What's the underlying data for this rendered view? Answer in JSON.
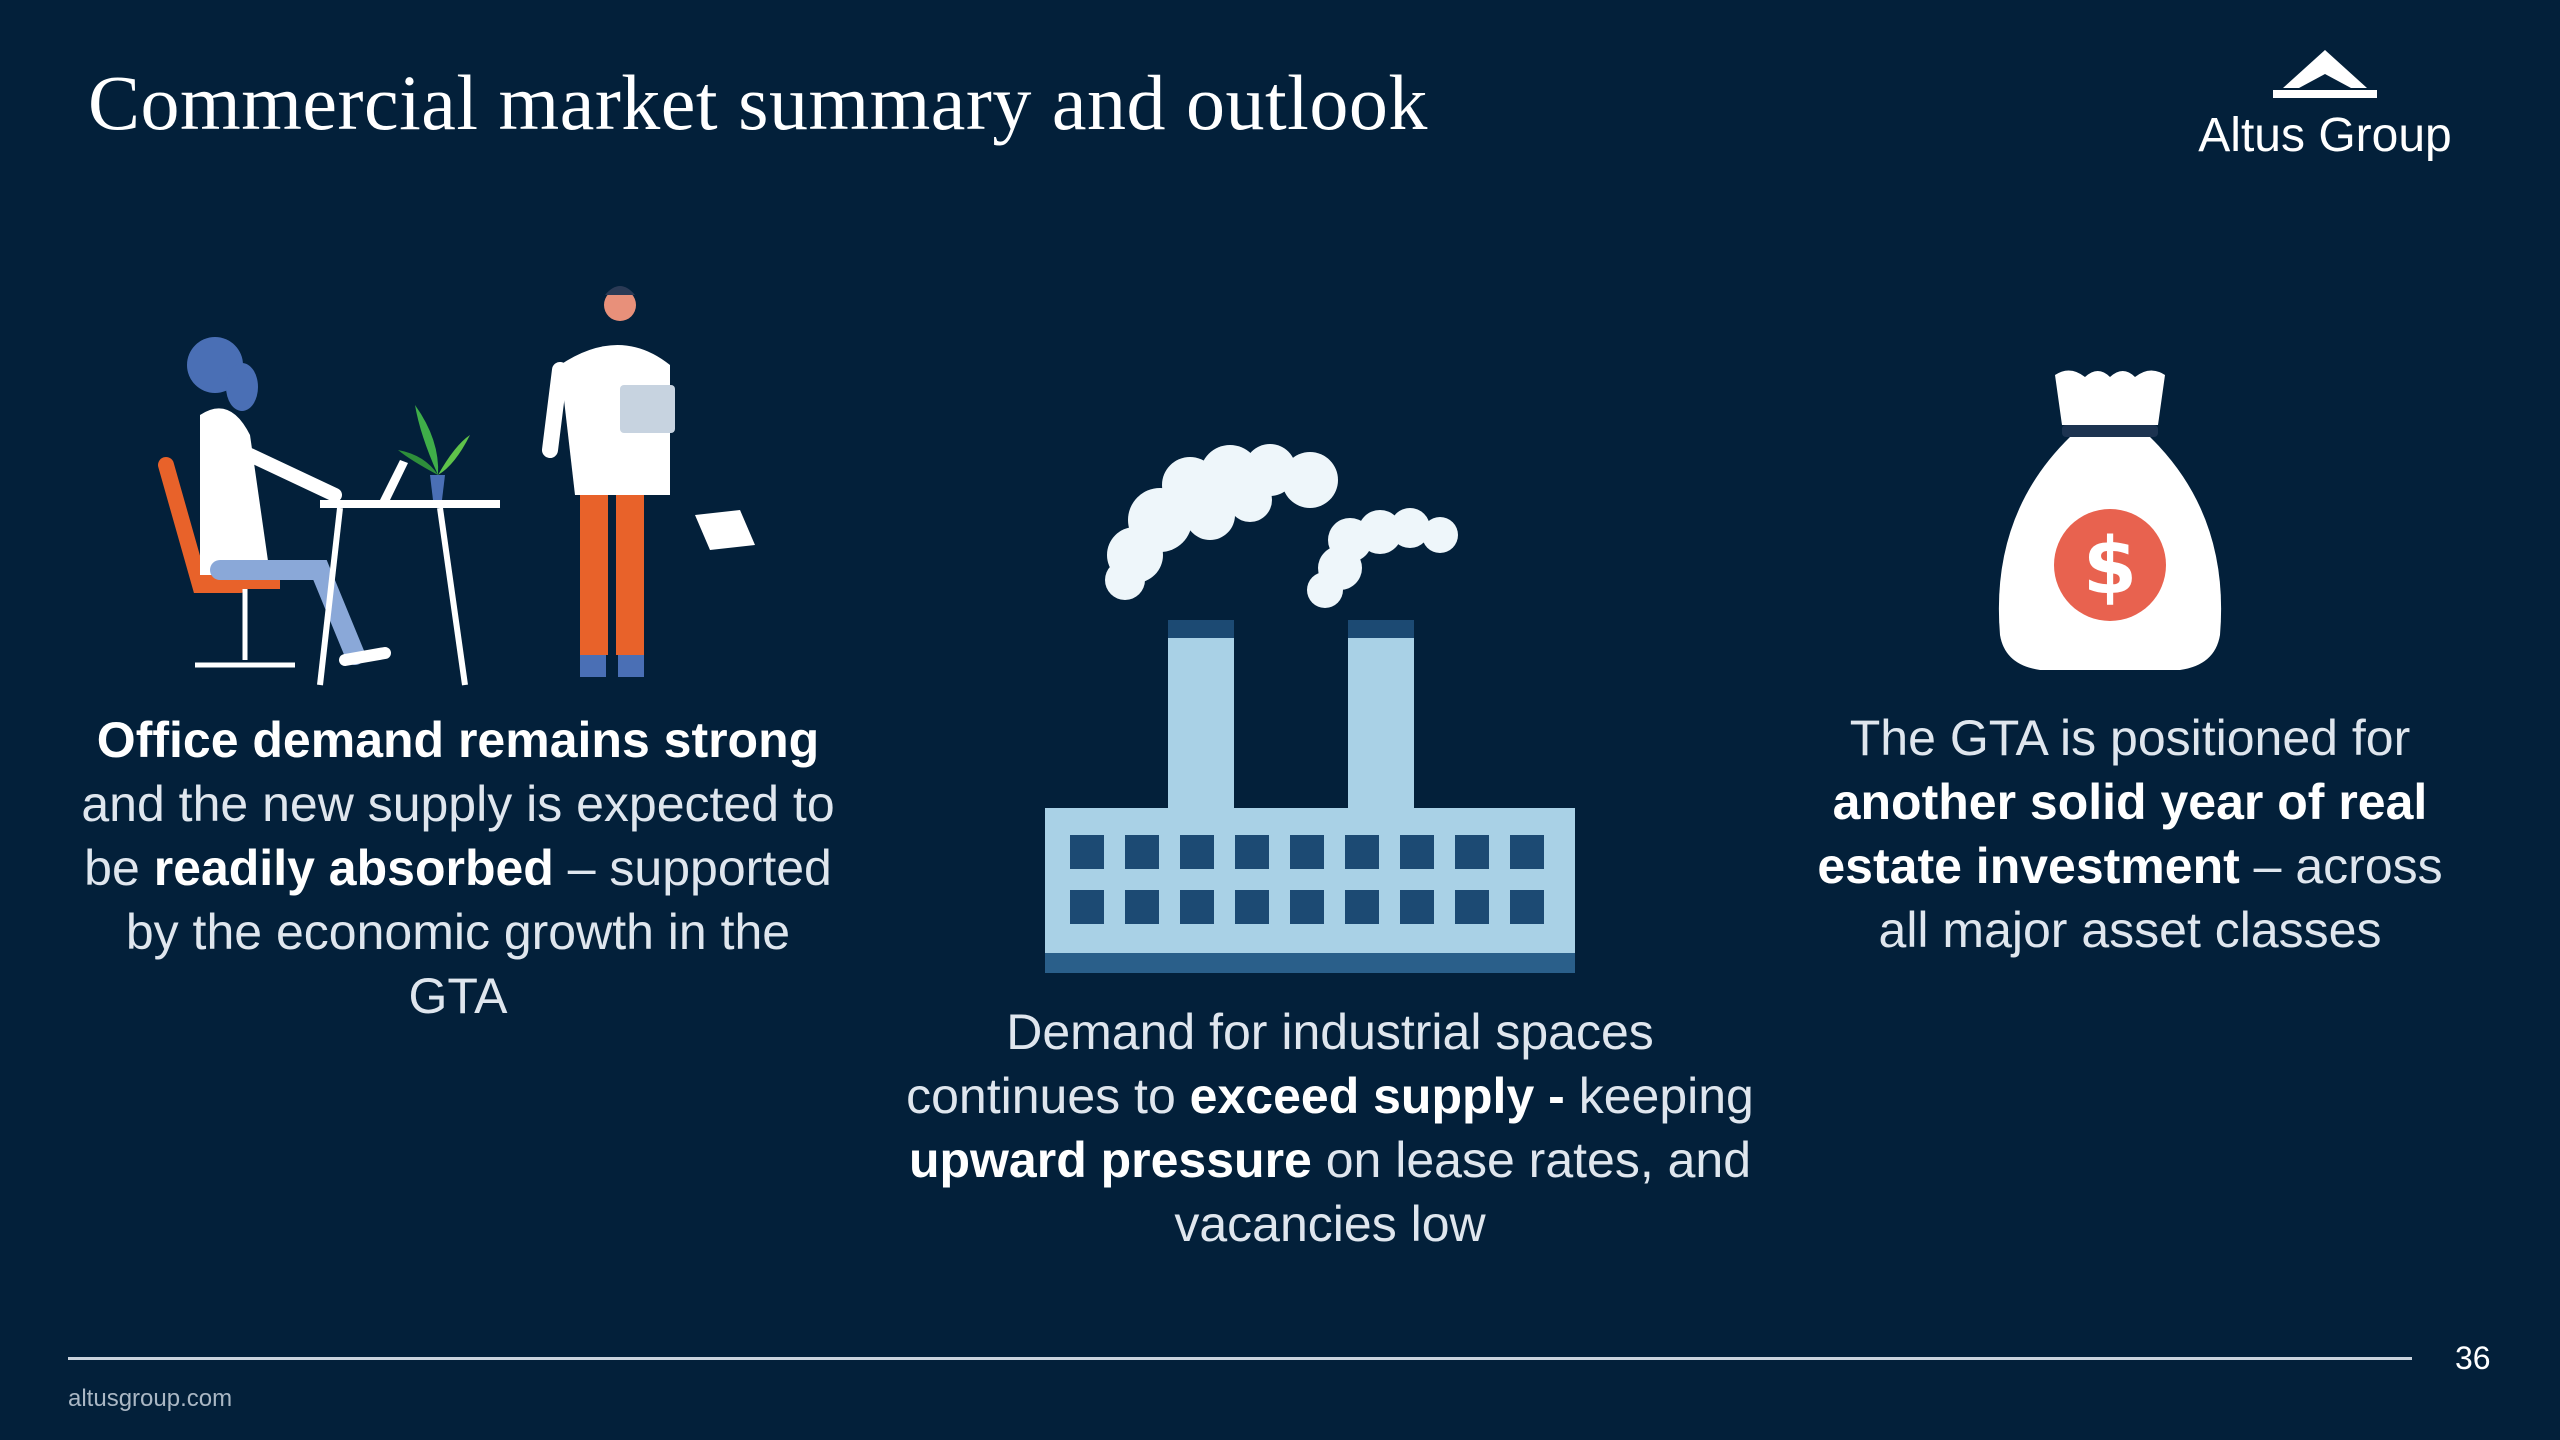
{
  "slide": {
    "title": "Commercial market summary and outlook",
    "page_number": "36",
    "footer_url": "altusgroup.com"
  },
  "logo": {
    "text": "Altus Group"
  },
  "columns": [
    {
      "icon": "office-workers-illustration",
      "text": [
        {
          "t": "Office demand remains strong",
          "bold": true
        },
        {
          "t": " and the new supply is expected to be ",
          "bold": false
        },
        {
          "t": "readily absorbed",
          "bold": true
        },
        {
          "t": " – supported by the economic growth in the GTA",
          "bold": false
        }
      ]
    },
    {
      "icon": "factory-illustration",
      "text": [
        {
          "t": "Demand for industrial spaces continues to ",
          "bold": false
        },
        {
          "t": "exceed supply -",
          "bold": true
        },
        {
          "t": " keeping ",
          "bold": false
        },
        {
          "t": "upward pressure",
          "bold": true
        },
        {
          "t": " on lease rates, and vacancies low",
          "bold": false
        }
      ]
    },
    {
      "icon": "money-bag-illustration",
      "text": [
        {
          "t": "The GTA is positioned for ",
          "bold": false
        },
        {
          "t": "another solid year of real estate investment",
          "bold": true
        },
        {
          "t": " – across all major asset classes",
          "bold": false
        }
      ]
    }
  ],
  "colors": {
    "background": "#03203a",
    "accent_orange": "#e8622a",
    "light_blue": "#a9d1e6",
    "dollar_red": "#e8624f"
  }
}
